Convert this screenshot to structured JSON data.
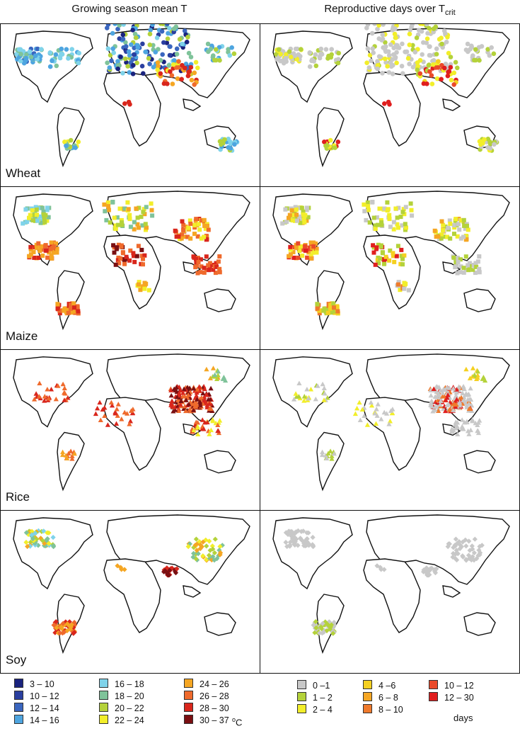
{
  "titles": {
    "left": "Growing season mean T",
    "right_main": "Reproductive days over T",
    "right_sub": "crit"
  },
  "crops": [
    "Wheat",
    "Maize",
    "Rice",
    "Soy"
  ],
  "legend_temp": {
    "items": [
      {
        "label": "3 – 10",
        "color": "#1a237e"
      },
      {
        "label": "10 – 12",
        "color": "#2a3fa0"
      },
      {
        "label": "12 – 14",
        "color": "#3a66bf"
      },
      {
        "label": "14 – 16",
        "color": "#4ea5e0"
      },
      {
        "label": "16 – 18",
        "color": "#7fd3ea"
      },
      {
        "label": "18 – 20",
        "color": "#7fc39a"
      },
      {
        "label": "20 – 22",
        "color": "#b4d23a"
      },
      {
        "label": "22 – 24",
        "color": "#f2ee2a"
      },
      {
        "label": "24 – 26",
        "color": "#f5a623"
      },
      {
        "label": "26 – 28",
        "color": "#ef6a2c"
      },
      {
        "label": "28 – 30",
        "color": "#d9261c"
      },
      {
        "label": "30 – 37",
        "color": "#7a0f12"
      }
    ],
    "unit_super": "o",
    "unit": "C"
  },
  "legend_days": {
    "items": [
      {
        "label": "0 –1",
        "color": "#c8c8c8"
      },
      {
        "label": "1 – 2",
        "color": "#b4d23a"
      },
      {
        "label": "2 – 4",
        "color": "#f2ee2a"
      },
      {
        "label": "4 –6",
        "color": "#f5d020"
      },
      {
        "label": "6 – 8",
        "color": "#f5a623"
      },
      {
        "label": "8 – 10",
        "color": "#ef7a2c"
      },
      {
        "label": "10 – 12",
        "color": "#ea4a2a"
      },
      {
        "label": "12 – 30",
        "color": "#e01e1e"
      }
    ],
    "unit": "days"
  }
}
